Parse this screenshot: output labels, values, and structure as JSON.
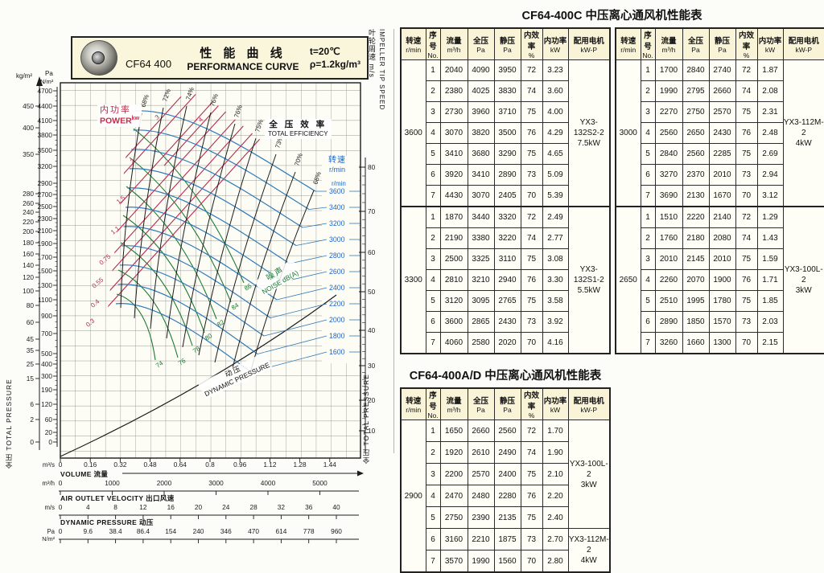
{
  "chart": {
    "header": {
      "model": "CF64 400",
      "title_cn": "性 能 曲 线",
      "title_en": "PERFORMANCE CURVE",
      "temp": "t=20℃",
      "density": "ρ=1.2kg/m³"
    },
    "left_axis": {
      "unit_kg": "kg/m²",
      "unit_pa": "Pa",
      "unit_nm2": "N/m²",
      "label": "全压 TOTAL PRESSURE",
      "kg_ticks": [
        "450",
        "400",
        "350",
        "280",
        "260",
        "240",
        "220",
        "200",
        "180",
        "160",
        "140",
        "120",
        "100",
        "80",
        "60",
        "45",
        "35",
        "25",
        "15",
        "6",
        "2",
        "0"
      ],
      "pa_ticks": [
        "4700",
        "4400",
        "4100",
        "3800",
        "3500",
        "3200",
        "2900",
        "2700",
        "2500",
        "2300",
        "2100",
        "1900",
        "1700",
        "1500",
        "1300",
        "1100",
        "900",
        "700",
        "500",
        "400",
        "300",
        "190",
        "120",
        "60",
        "20",
        "0"
      ]
    },
    "right_axis": {
      "label_cn": "叶轮周速 m/s",
      "label_en": "IMPELLER TIP SPEED",
      "label_right": "全压 TOTAL PRESSURE",
      "ticks": [
        "80",
        "70",
        "60",
        "50",
        "40",
        "30",
        "20",
        "10"
      ]
    },
    "speed_scale": {
      "title": "转速",
      "unit": "r/min",
      "unit_repeat": "r/min",
      "values": [
        "3600",
        "3400",
        "3200",
        "3000",
        "2800",
        "2600",
        "2400",
        "2200",
        "2000",
        "1800",
        "1600"
      ]
    },
    "labels": {
      "power_cn": "内功率",
      "power_en": "POWER",
      "power_unit": "kw",
      "efficiency_cn": "全 压 效 率",
      "efficiency_en": "TOTAL EFFICIENCY",
      "noise_cn": "噪声",
      "noise_en": "NOISE dB(A)",
      "dyn_cn": "动压",
      "dyn_en": "DYNAMIC PRESSURE"
    },
    "contours": {
      "power": [
        "0.3",
        "0.4",
        "0.55",
        "0.75",
        "1.1",
        "1.5",
        "2",
        "3",
        "4"
      ],
      "efficiency": [
        "68%",
        "72%",
        "74%",
        "76%",
        "76%",
        "75%",
        "73%",
        "70%",
        "68%"
      ],
      "noise": [
        "86",
        "84",
        "82",
        "80",
        "78",
        "76",
        "74"
      ]
    },
    "x_axis": {
      "unit": "m³/s",
      "ticks": [
        "0",
        "0.16",
        "0.32",
        "0.48",
        "0.64",
        "0.8",
        "0.96",
        "1.12",
        "1.28",
        "1.44"
      ],
      "volume_label": "VOLUME 流量"
    },
    "m3h_axis": {
      "unit": "m³/h",
      "ticks": [
        "0",
        "1000",
        "2000",
        "3000",
        "4000",
        "5000"
      ]
    },
    "velocity_axis": {
      "label": "AIR OUTLET VELOCITY 出口风速",
      "unit": "m/s",
      "ticks": [
        "0",
        "4",
        "8",
        "12",
        "16",
        "20",
        "24",
        "28",
        "32",
        "36",
        "40"
      ]
    },
    "dyn_axis": {
      "label": "DYNAMIC PRESSURE 动压",
      "unit_pa": "Pa",
      "unit_nm2": "N/m²",
      "ticks": [
        "0",
        "9.6",
        "38.4",
        "86.4",
        "154",
        "240",
        "346",
        "470",
        "614",
        "778",
        "960"
      ]
    },
    "colors": {
      "blue": "#2f7ab8",
      "blue_text": "#1a66cc",
      "red": "#b62a50",
      "green": "#1c7a33",
      "black": "#1c1c1c",
      "cream": "#faf6dc"
    }
  },
  "chart_data": {
    "type": "line",
    "title": "CF64 400 性能曲线 PERFORMANCE CURVE (t=20℃, ρ=1.2kg/m³)",
    "xlabel": "VOLUME 流量 m³/s (0–1.44) / m³/h (0–5000)",
    "ylabel": "全压 TOTAL PRESSURE Pa (0–4700)",
    "speed_curves_rmin": [
      3600,
      3400,
      3200,
      3000,
      2800,
      2600,
      2400,
      2200,
      2000,
      1800,
      1600
    ],
    "efficiency_contours_pct": [
      68,
      72,
      74,
      76,
      76,
      75,
      73,
      70,
      68
    ],
    "power_contours_kw": [
      0.3,
      0.4,
      0.55,
      0.75,
      1.1,
      1.5,
      2,
      3,
      4
    ],
    "noise_contours_dba": [
      86,
      84,
      82,
      80,
      78,
      76,
      74
    ],
    "impeller_tip_speed_ms": [
      80,
      70,
      60,
      50,
      40,
      30,
      20,
      10
    ],
    "series": [
      {
        "name": "3600 r/min",
        "flow_m3h": [
          2040,
          2380,
          2730,
          3070,
          3410,
          3920,
          4430
        ],
        "total_pressure_pa": [
          4090,
          4025,
          3960,
          3820,
          3680,
          3410,
          3070
        ]
      },
      {
        "name": "3300 r/min",
        "flow_m3h": [
          1870,
          2190,
          2500,
          2810,
          3120,
          3600,
          4060
        ],
        "total_pressure_pa": [
          3440,
          3380,
          3325,
          3210,
          3095,
          2865,
          2580
        ]
      },
      {
        "name": "3000 r/min",
        "flow_m3h": [
          1700,
          1990,
          2270,
          2560,
          2840,
          3270,
          3690
        ],
        "total_pressure_pa": [
          2840,
          2795,
          2750,
          2650,
          2560,
          2370,
          2130
        ]
      },
      {
        "name": "2900 r/min",
        "flow_m3h": [
          1650,
          1920,
          2200,
          2470,
          2750,
          3160,
          3570
        ],
        "total_pressure_pa": [
          2660,
          2610,
          2570,
          2480,
          2390,
          2210,
          1990
        ]
      },
      {
        "name": "2650 r/min",
        "flow_m3h": [
          1510,
          1760,
          2010,
          2260,
          2510,
          2890,
          3260
        ],
        "total_pressure_pa": [
          2220,
          2180,
          2145,
          2070,
          1995,
          1850,
          1660
        ]
      }
    ],
    "dynamic_pressure_line": {
      "velocity_ms": [
        0,
        4,
        8,
        12,
        16,
        20,
        24,
        28,
        32,
        36,
        40
      ],
      "pressure_pa": [
        0,
        9.6,
        38.4,
        86.4,
        154,
        240,
        346,
        470,
        614,
        778,
        960
      ]
    }
  },
  "tables": [
    {
      "title": "CF64-400C 中压离心通风机性能表",
      "col_headers": [
        {
          "l1": "转速",
          "l2": "r/min"
        },
        {
          "l1": "序号",
          "l2": "No."
        },
        {
          "l1": "流量",
          "l2": "m³/h"
        },
        {
          "l1": "全压",
          "l2": "Pa"
        },
        {
          "l1": "静压",
          "l2": "Pa"
        },
        {
          "l1": "内效率",
          "l2": "%"
        },
        {
          "l1": "内功率",
          "l2": "kW"
        },
        {
          "l1": "配用电机",
          "l2": "kW-P"
        }
      ],
      "halves": [
        [
          {
            "speed": "3600",
            "motors": [
              {
                "rows": 7,
                "model": "YX3-132S2-2",
                "power": "7.5kW"
              }
            ],
            "rows": [
              [
                "1",
                "2040",
                "4090",
                "3950",
                "72",
                "3.23"
              ],
              [
                "2",
                "2380",
                "4025",
                "3830",
                "74",
                "3.60"
              ],
              [
                "3",
                "2730",
                "3960",
                "3710",
                "75",
                "4.00"
              ],
              [
                "4",
                "3070",
                "3820",
                "3500",
                "76",
                "4.29"
              ],
              [
                "5",
                "3410",
                "3680",
                "3290",
                "75",
                "4.65"
              ],
              [
                "6",
                "3920",
                "3410",
                "2890",
                "73",
                "5.09"
              ],
              [
                "7",
                "4430",
                "3070",
                "2405",
                "70",
                "5.39"
              ]
            ]
          },
          {
            "speed": "3300",
            "motors": [
              {
                "rows": 7,
                "model": "YX3-132S1-2",
                "power": "5.5kW"
              }
            ],
            "rows": [
              [
                "1",
                "1870",
                "3440",
                "3320",
                "72",
                "2.49"
              ],
              [
                "2",
                "2190",
                "3380",
                "3220",
                "74",
                "2.77"
              ],
              [
                "3",
                "2500",
                "3325",
                "3110",
                "75",
                "3.08"
              ],
              [
                "4",
                "2810",
                "3210",
                "2940",
                "76",
                "3.30"
              ],
              [
                "5",
                "3120",
                "3095",
                "2765",
                "75",
                "3.58"
              ],
              [
                "6",
                "3600",
                "2865",
                "2430",
                "73",
                "3.92"
              ],
              [
                "7",
                "4060",
                "2580",
                "2020",
                "70",
                "4.16"
              ]
            ]
          }
        ],
        [
          {
            "speed": "3000",
            "motors": [
              {
                "rows": 7,
                "model": "YX3-112M-2",
                "power": "4kW"
              }
            ],
            "rows": [
              [
                "1",
                "1700",
                "2840",
                "2740",
                "72",
                "1.87"
              ],
              [
                "2",
                "1990",
                "2795",
                "2660",
                "74",
                "2.08"
              ],
              [
                "3",
                "2270",
                "2750",
                "2570",
                "75",
                "2.31"
              ],
              [
                "4",
                "2560",
                "2650",
                "2430",
                "76",
                "2.48"
              ],
              [
                "5",
                "2840",
                "2560",
                "2285",
                "75",
                "2.69"
              ],
              [
                "6",
                "3270",
                "2370",
                "2010",
                "73",
                "2.94"
              ],
              [
                "7",
                "3690",
                "2130",
                "1670",
                "70",
                "3.12"
              ]
            ]
          },
          {
            "speed": "2650",
            "motors": [
              {
                "rows": 7,
                "model": "YX3-100L-2",
                "power": "3kW"
              }
            ],
            "rows": [
              [
                "1",
                "1510",
                "2220",
                "2140",
                "72",
                "1.29"
              ],
              [
                "2",
                "1760",
                "2180",
                "2080",
                "74",
                "1.43"
              ],
              [
                "3",
                "2010",
                "2145",
                "2010",
                "75",
                "1.59"
              ],
              [
                "4",
                "2260",
                "2070",
                "1900",
                "76",
                "1.71"
              ],
              [
                "5",
                "2510",
                "1995",
                "1780",
                "75",
                "1.85"
              ],
              [
                "6",
                "2890",
                "1850",
                "1570",
                "73",
                "2.03"
              ],
              [
                "7",
                "3260",
                "1660",
                "1300",
                "70",
                "2.15"
              ]
            ]
          }
        ]
      ]
    },
    {
      "title": "CF64-400A/D 中压离心通风机性能表",
      "col_headers": [
        {
          "l1": "转速",
          "l2": "r/min"
        },
        {
          "l1": "序号",
          "l2": "No."
        },
        {
          "l1": "流量",
          "l2": "m³/h"
        },
        {
          "l1": "全压",
          "l2": "Pa"
        },
        {
          "l1": "静压",
          "l2": "Pa"
        },
        {
          "l1": "内效率",
          "l2": "%"
        },
        {
          "l1": "内功率",
          "l2": "kW"
        },
        {
          "l1": "配用电机",
          "l2": "kW-P"
        }
      ],
      "halves": [
        [
          {
            "speed": "2900",
            "motors": [
              {
                "rows": 5,
                "model": "YX3-100L-2",
                "power": "3kW"
              },
              {
                "rows": 2,
                "model": "YX3-112M-2",
                "power": "4kW"
              }
            ],
            "rows": [
              [
                "1",
                "1650",
                "2660",
                "2560",
                "72",
                "1.70"
              ],
              [
                "2",
                "1920",
                "2610",
                "2490",
                "74",
                "1.90"
              ],
              [
                "3",
                "2200",
                "2570",
                "2400",
                "75",
                "2.10"
              ],
              [
                "4",
                "2470",
                "2480",
                "2280",
                "76",
                "2.20"
              ],
              [
                "5",
                "2750",
                "2390",
                "2135",
                "75",
                "2.40"
              ],
              [
                "6",
                "3160",
                "2210",
                "1875",
                "73",
                "2.70"
              ],
              [
                "7",
                "3570",
                "1990",
                "1560",
                "70",
                "2.80"
              ]
            ]
          }
        ]
      ]
    }
  ]
}
